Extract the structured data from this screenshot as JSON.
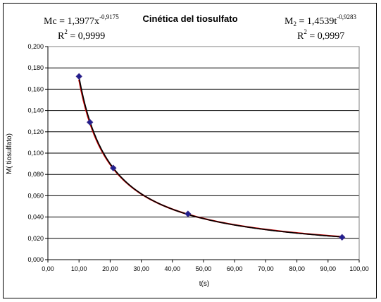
{
  "chart_data": {
    "type": "scatter",
    "title": "Cinética del tiosulfato",
    "xlabel": "t(s)",
    "ylabel": "M( tiosulfato)",
    "xlim": [
      0,
      100
    ],
    "ylim": [
      0,
      0.2
    ],
    "x_ticks": [
      "0,00",
      "10,00",
      "20,00",
      "30,00",
      "40,00",
      "50,00",
      "60,00",
      "70,00",
      "80,00",
      "90,00",
      "100,00"
    ],
    "y_ticks": [
      "0,000",
      "0,020",
      "0,040",
      "0,060",
      "0,080",
      "0,100",
      "0,120",
      "0,140",
      "0,160",
      "0,180",
      "0,200"
    ],
    "grid": "horizontal",
    "series": [
      {
        "type": "scatter",
        "color": "#1f1f8f",
        "points": [
          [
            10,
            0.172
          ],
          [
            13.5,
            0.129
          ],
          [
            21,
            0.086
          ],
          [
            45,
            0.043
          ],
          [
            94.5,
            0.021
          ]
        ]
      }
    ],
    "fits": [
      {
        "color": "#cc0000",
        "coef": 1.3977,
        "exp": -0.9175,
        "label_lhs": "Mc = 1,3977x",
        "label_exp": "-0,9175",
        "r2_label": "R",
        "r2_sup": "2",
        "r2_value": " = 0,9999"
      },
      {
        "color": "#000000",
        "coef": 1.4539,
        "exp": -0.9283,
        "label_lhs": "M",
        "label_sub": "2",
        "label_mid": " = 1,4539t",
        "label_exp": "-0,9283",
        "r2_label": "R",
        "r2_sup": "2",
        "r2_value": " = 0,9997"
      }
    ]
  }
}
